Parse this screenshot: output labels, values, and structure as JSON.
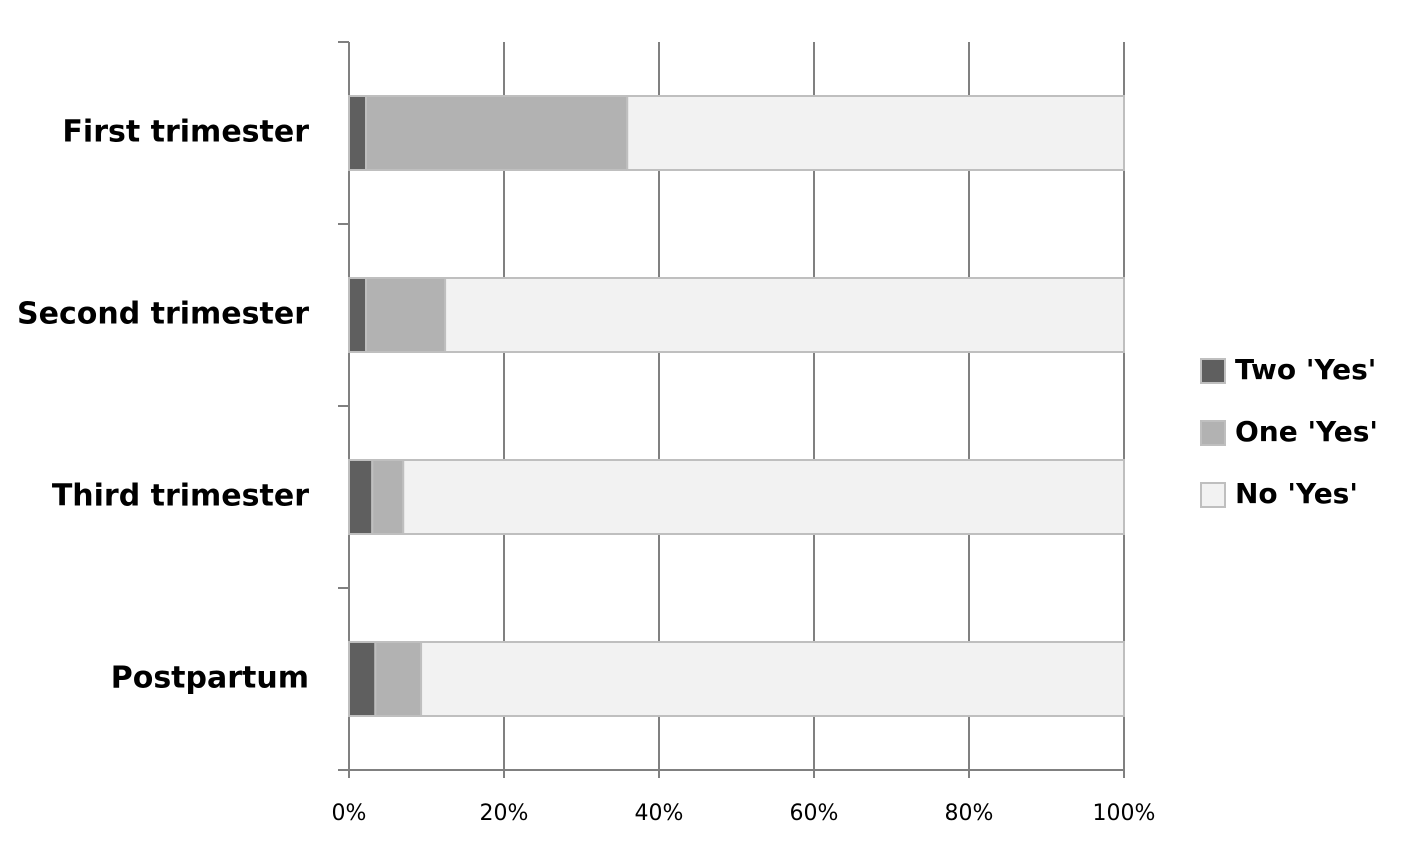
{
  "chart_data": {
    "type": "stacked-bar-horizontal",
    "categories": [
      "First trimester",
      "Second trimester",
      "Third trimester",
      "Postpartum"
    ],
    "series": [
      {
        "name": "Two 'Yes'",
        "color": "#5f5f5f",
        "values": [
          2.2,
          2.2,
          3.0,
          3.4
        ]
      },
      {
        "name": "One 'Yes'",
        "color": "#b2b2b2",
        "values": [
          33.7,
          10.2,
          4.0,
          5.9
        ]
      },
      {
        "name": "No 'Yes'",
        "color": "#f2f2f2",
        "values": [
          64.1,
          87.6,
          93.0,
          90.7
        ]
      }
    ],
    "xlim": [
      0,
      100
    ],
    "xticks": [
      {
        "value": 0,
        "label": "0%"
      },
      {
        "value": 20,
        "label": "20%"
      },
      {
        "value": 40,
        "label": "40%"
      },
      {
        "value": 60,
        "label": "60%"
      },
      {
        "value": 80,
        "label": "80%"
      },
      {
        "value": 100,
        "label": "100%"
      }
    ],
    "grid": true,
    "legend": "right"
  }
}
